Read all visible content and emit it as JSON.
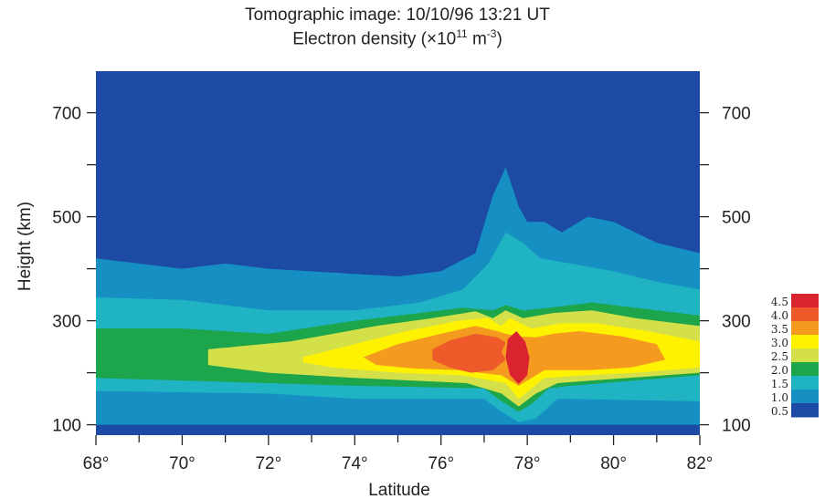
{
  "chart_data": {
    "type": "heatmap",
    "title": "Tomographic image: 10/10/96 13:21 UT",
    "subtitle_prefix": "Electron density (×10",
    "subtitle_exp1": "11",
    "subtitle_mid": " m",
    "subtitle_exp2": "-3",
    "subtitle_suffix": ")",
    "xlabel": "Latitude",
    "ylabel": "Height (km)",
    "xlim": [
      68,
      82
    ],
    "ylim": [
      80,
      780
    ],
    "x_ticks": [
      {
        "value": 68,
        "label": "68°"
      },
      {
        "value": 70,
        "label": "70°"
      },
      {
        "value": 72,
        "label": "72°"
      },
      {
        "value": 74,
        "label": "74°"
      },
      {
        "value": 76,
        "label": "76°"
      },
      {
        "value": 78,
        "label": "78°"
      },
      {
        "value": 80,
        "label": "80°"
      },
      {
        "value": 82,
        "label": "82°"
      }
    ],
    "y_ticks": [
      {
        "value": 100,
        "label": "100"
      },
      {
        "value": 300,
        "label": "300"
      },
      {
        "value": 500,
        "label": "500"
      },
      {
        "value": 700,
        "label": "700"
      }
    ],
    "colorbar": {
      "levels": [
        "4.5",
        "4.0",
        "3.5",
        "3.0",
        "2.5",
        "2.0",
        "1.5",
        "1.0",
        "0.5"
      ],
      "colors": [
        "#d9232e",
        "#ee5a2a",
        "#f39a1f",
        "#fff200",
        "#d4e04a",
        "#1ca54a",
        "#1fb3c4",
        "#1690c2",
        "#1c4aa5"
      ]
    },
    "background_color": "#1c4aa5",
    "contours": [
      {
        "level": "0.5-1.0",
        "color": "#1690c2",
        "points": [
          [
            68,
            420
          ],
          [
            69,
            410
          ],
          [
            70,
            400
          ],
          [
            71,
            410
          ],
          [
            72,
            400
          ],
          [
            73,
            395
          ],
          [
            74,
            390
          ],
          [
            75,
            385
          ],
          [
            76,
            395
          ],
          [
            76.8,
            430
          ],
          [
            77.2,
            540
          ],
          [
            77.5,
            595
          ],
          [
            77.8,
            520
          ],
          [
            78,
            490
          ],
          [
            78.4,
            490
          ],
          [
            78.8,
            470
          ],
          [
            79.4,
            500
          ],
          [
            80,
            490
          ],
          [
            81,
            450
          ],
          [
            82,
            430
          ],
          [
            82,
            100
          ],
          [
            68,
            100
          ]
        ]
      },
      {
        "level": "1.0-1.5",
        "color": "#1fb3c4",
        "points": [
          [
            68,
            345
          ],
          [
            70,
            340
          ],
          [
            72,
            320
          ],
          [
            74,
            320
          ],
          [
            75.5,
            335
          ],
          [
            76.5,
            360
          ],
          [
            77.1,
            410
          ],
          [
            77.5,
            470
          ],
          [
            77.9,
            450
          ],
          [
            78.3,
            420
          ],
          [
            79,
            410
          ],
          [
            80,
            395
          ],
          [
            81,
            375
          ],
          [
            82,
            360
          ],
          [
            82,
            145
          ],
          [
            78.7,
            150
          ],
          [
            78.2,
            112
          ],
          [
            77.8,
            105
          ],
          [
            77.4,
            125
          ],
          [
            77,
            150
          ],
          [
            74,
            150
          ],
          [
            72,
            160
          ],
          [
            68,
            165
          ]
        ]
      },
      {
        "level": "1.5-2.0",
        "color": "#1ca54a",
        "points": [
          [
            68,
            285
          ],
          [
            70,
            285
          ],
          [
            72,
            275
          ],
          [
            74,
            300
          ],
          [
            75.5,
            315
          ],
          [
            76.5,
            325
          ],
          [
            77.2,
            320
          ],
          [
            77.5,
            330
          ],
          [
            77.9,
            320
          ],
          [
            78.5,
            325
          ],
          [
            79.5,
            335
          ],
          [
            80.5,
            325
          ],
          [
            82,
            310
          ],
          [
            82,
            195
          ],
          [
            79,
            175
          ],
          [
            78.5,
            170
          ],
          [
            78.1,
            140
          ],
          [
            77.8,
            125
          ],
          [
            77.4,
            145
          ],
          [
            77,
            170
          ],
          [
            74,
            175
          ],
          [
            72,
            180
          ],
          [
            70,
            185
          ],
          [
            68,
            190
          ]
        ]
      },
      {
        "level": "2.0-2.5",
        "color": "#d4e04a",
        "points": [
          [
            70.6,
            245
          ],
          [
            72.5,
            260
          ],
          [
            74.5,
            290
          ],
          [
            75.8,
            305
          ],
          [
            76.8,
            318
          ],
          [
            77.2,
            305
          ],
          [
            77.5,
            320
          ],
          [
            77.9,
            305
          ],
          [
            78.6,
            315
          ],
          [
            79.5,
            320
          ],
          [
            80.5,
            305
          ],
          [
            82,
            290
          ],
          [
            82,
            200
          ],
          [
            79.5,
            185
          ],
          [
            78.7,
            180
          ],
          [
            78.2,
            160
          ],
          [
            77.8,
            135
          ],
          [
            77.4,
            160
          ],
          [
            76.6,
            180
          ],
          [
            74,
            190
          ],
          [
            72,
            200
          ],
          [
            70.6,
            215
          ]
        ]
      },
      {
        "level": "2.5-3.0",
        "color": "#fff200",
        "points": [
          [
            72.8,
            230
          ],
          [
            74,
            255
          ],
          [
            75.2,
            280
          ],
          [
            76.4,
            300
          ],
          [
            77.1,
            305
          ],
          [
            77.4,
            290
          ],
          [
            77.6,
            305
          ],
          [
            78.1,
            285
          ],
          [
            78.8,
            295
          ],
          [
            79.6,
            295
          ],
          [
            80.8,
            280
          ],
          [
            82,
            260
          ],
          [
            82,
            210
          ],
          [
            80.5,
            200
          ],
          [
            79.3,
            195
          ],
          [
            78.4,
            190
          ],
          [
            78.1,
            170
          ],
          [
            77.8,
            150
          ],
          [
            77.5,
            180
          ],
          [
            76.5,
            195
          ],
          [
            75,
            200
          ],
          [
            73.5,
            210
          ],
          [
            72.8,
            220
          ]
        ]
      },
      {
        "level": "3.0-3.5",
        "color": "#f39a1f",
        "points": [
          [
            74.2,
            230
          ],
          [
            75,
            255
          ],
          [
            76,
            275
          ],
          [
            76.8,
            290
          ],
          [
            77.3,
            280
          ],
          [
            77.5,
            275
          ],
          [
            77.8,
            270
          ],
          [
            78.2,
            268
          ],
          [
            78.6,
            275
          ],
          [
            79.2,
            280
          ],
          [
            80.2,
            270
          ],
          [
            81,
            255
          ],
          [
            81.2,
            225
          ],
          [
            80.4,
            210
          ],
          [
            79.4,
            205
          ],
          [
            78.4,
            205
          ],
          [
            78.1,
            190
          ],
          [
            77.8,
            175
          ],
          [
            77.4,
            195
          ],
          [
            76.4,
            205
          ],
          [
            75.4,
            208
          ],
          [
            74.5,
            215
          ]
        ]
      },
      {
        "level": "3.5-4.0",
        "color": "#ee5a2a",
        "points": [
          [
            75.8,
            245
          ],
          [
            76.2,
            262
          ],
          [
            76.8,
            275
          ],
          [
            77.3,
            268
          ],
          [
            77.5,
            258
          ],
          [
            77.4,
            240
          ],
          [
            77.5,
            225
          ],
          [
            77.2,
            205
          ],
          [
            76.7,
            200
          ],
          [
            76.2,
            210
          ],
          [
            75.8,
            225
          ]
        ]
      },
      {
        "level": "4.0-4.5",
        "color": "#d9232e",
        "points": [
          [
            77.55,
            265
          ],
          [
            77.75,
            280
          ],
          [
            77.95,
            260
          ],
          [
            78.05,
            230
          ],
          [
            78,
            195
          ],
          [
            77.8,
            178
          ],
          [
            77.6,
            195
          ],
          [
            77.5,
            230
          ]
        ]
      }
    ]
  }
}
